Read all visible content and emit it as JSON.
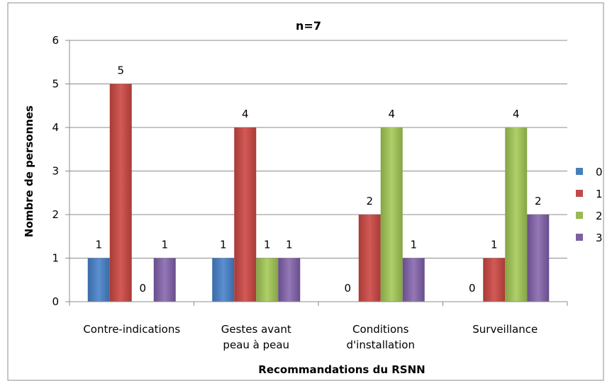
{
  "chart_data": {
    "type": "bar",
    "title": "n=7",
    "xlabel": "Recommandations du RSNN",
    "ylabel": "Nombre de personnes",
    "ylim": [
      0,
      6
    ],
    "yticks": [
      "0",
      "1",
      "2",
      "3",
      "4",
      "5",
      "6"
    ],
    "grid": true,
    "legend_position": "right",
    "categories": [
      [
        "Contre-indications"
      ],
      [
        "Gestes avant",
        "peau à peau"
      ],
      [
        "Conditions",
        "d'installation"
      ],
      [
        "Surveillance"
      ]
    ],
    "series": [
      {
        "name": "0",
        "color": "#4A7EBB",
        "values": [
          1,
          1,
          0,
          0
        ]
      },
      {
        "name": "1",
        "color": "#BE4B48",
        "values": [
          5,
          4,
          2,
          1
        ]
      },
      {
        "name": "2",
        "color": "#98B954",
        "values": [
          0,
          1,
          4,
          4
        ]
      },
      {
        "name": "3",
        "color": "#7D60A0",
        "values": [
          1,
          1,
          1,
          2
        ]
      }
    ]
  }
}
